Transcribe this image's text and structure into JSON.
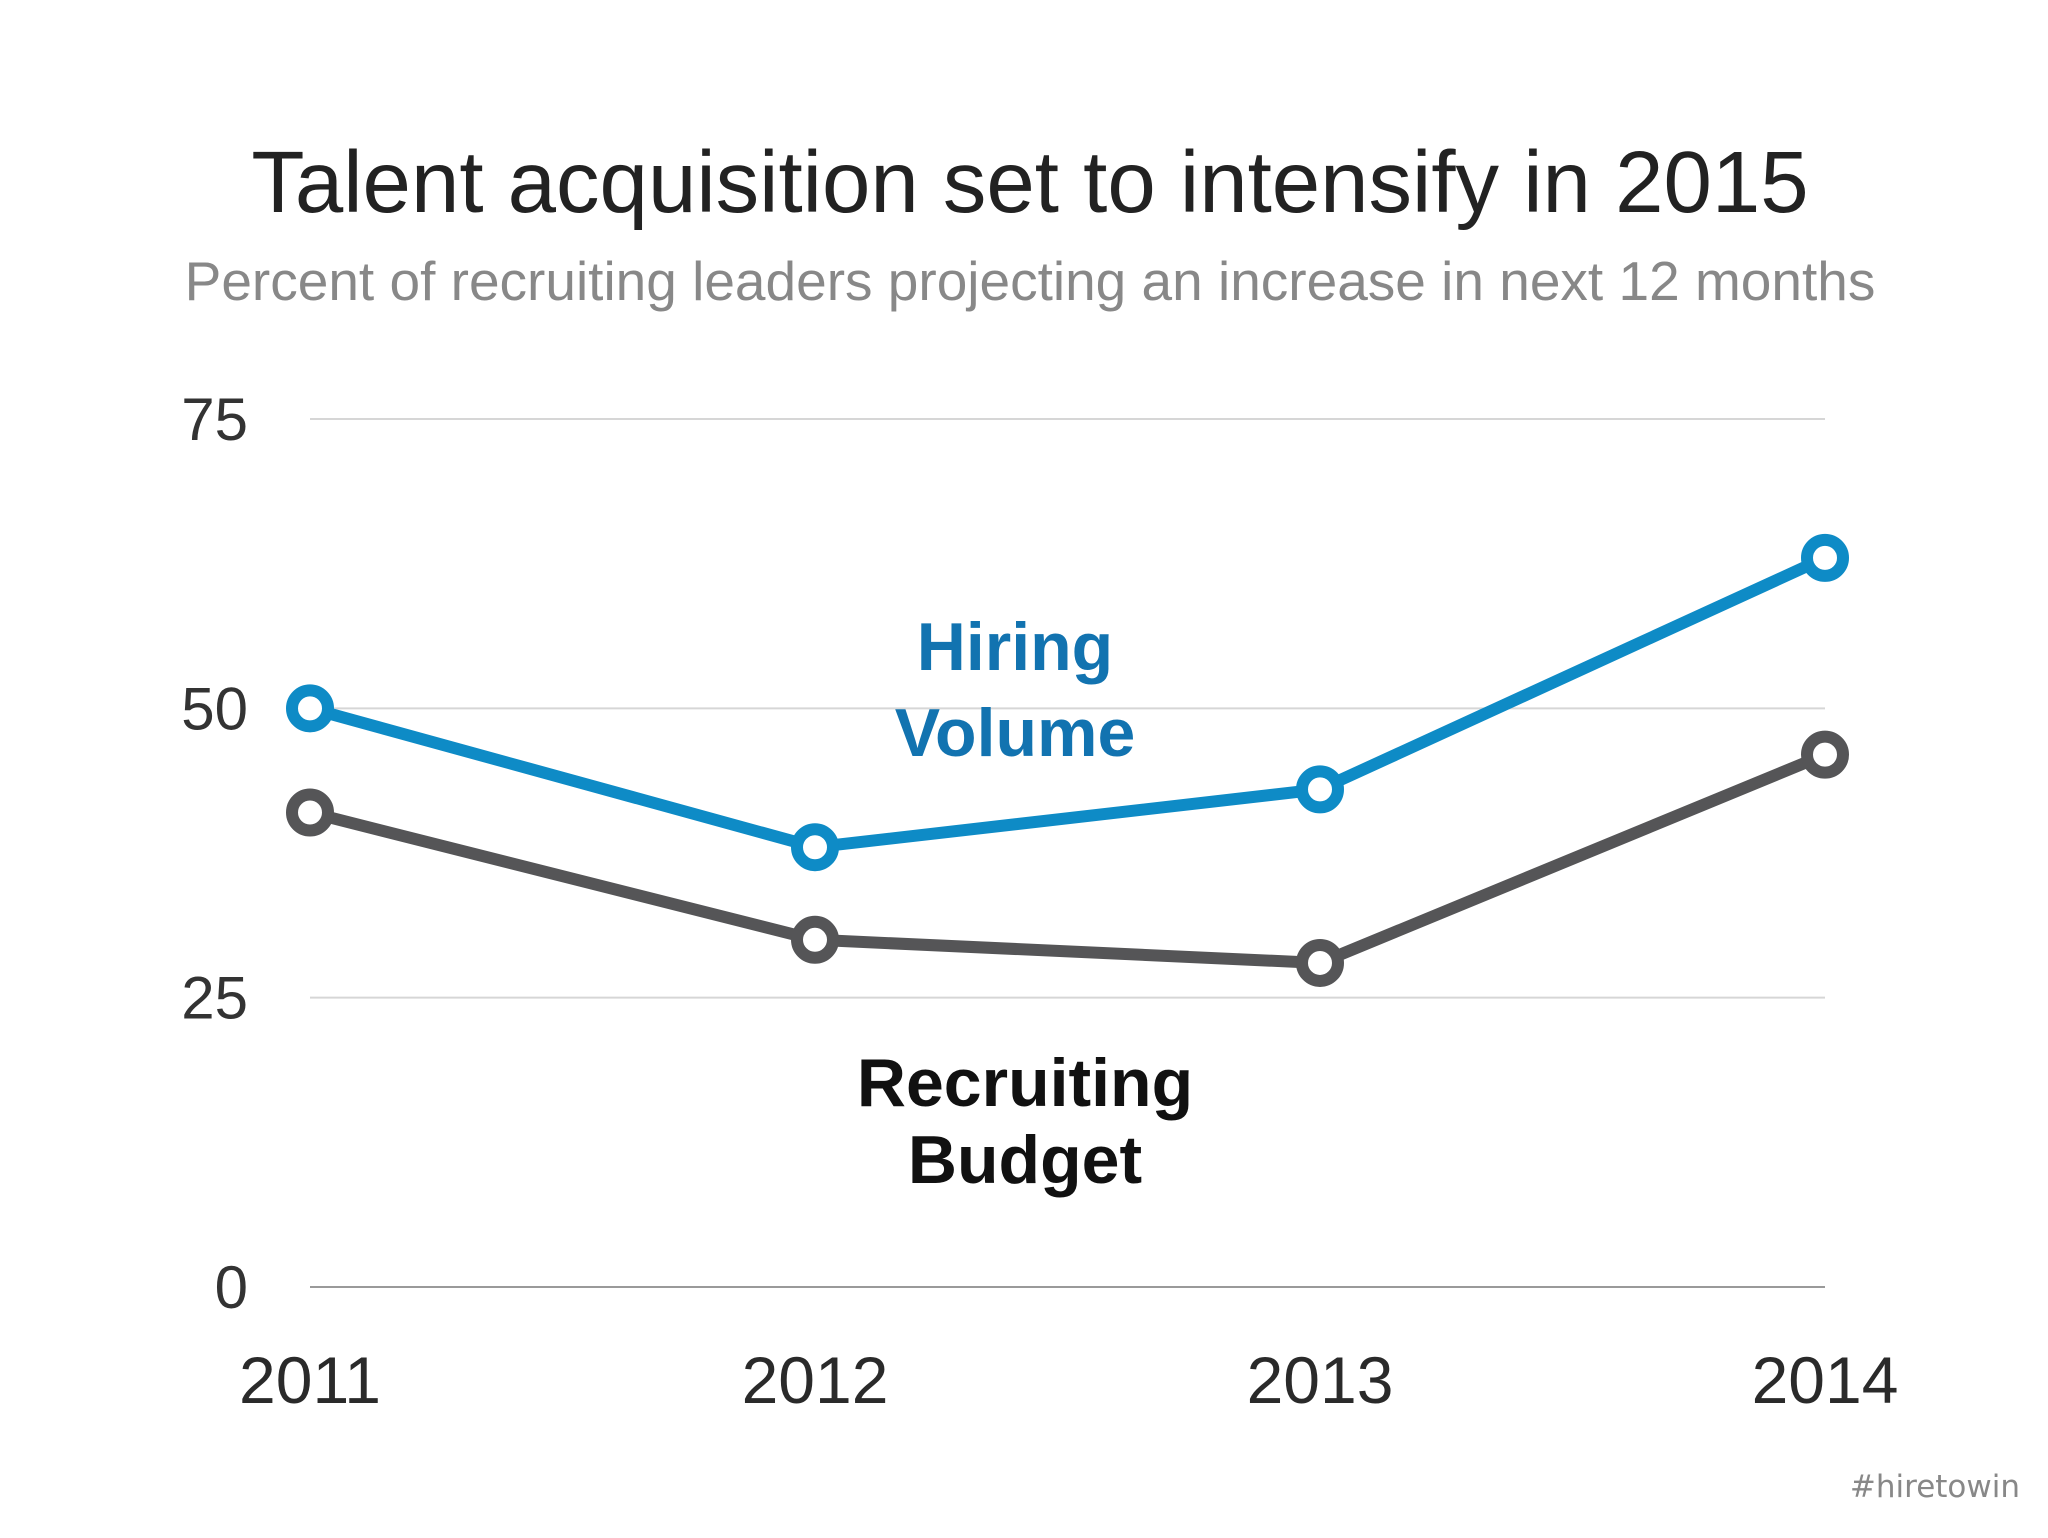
{
  "chart_data": {
    "type": "line",
    "title": "Talent acquisition set to intensify in 2015",
    "subtitle": "Percent of recruiting leaders projecting an increase in next 12 months",
    "xlabel": "",
    "ylabel": "",
    "categories": [
      "2011",
      "2012",
      "2013",
      "2014"
    ],
    "ylim": [
      0,
      75
    ],
    "yticks": [
      "0",
      "25",
      "50",
      "75"
    ],
    "grid": true,
    "series": [
      {
        "name": "Hiring Volume",
        "label_lines": [
          "Hiring",
          "Volume"
        ],
        "color": "#0e8bc6",
        "label_color": "#1273b0",
        "values": [
          50,
          38,
          43,
          63
        ]
      },
      {
        "name": "Recruiting Budget",
        "label_lines": [
          "Recruiting",
          "Budget"
        ],
        "color": "#555557",
        "label_color": "#111111",
        "values": [
          41,
          30,
          28,
          46
        ]
      }
    ]
  },
  "watermark": "#hiretowin"
}
